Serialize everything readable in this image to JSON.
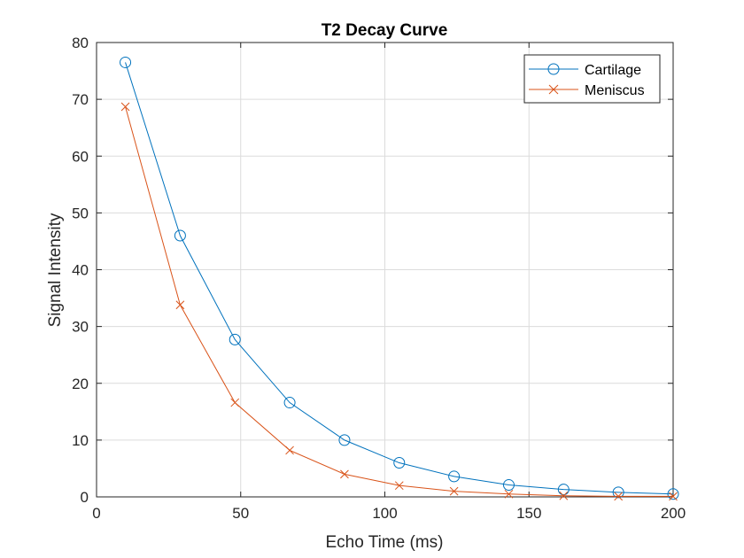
{
  "chart_data": {
    "type": "line",
    "title": "T2 Decay Curve",
    "xlabel": "Echo Time (ms)",
    "ylabel": "Signal Intensity",
    "xlim": [
      0,
      200
    ],
    "ylim": [
      0,
      80
    ],
    "xticks": [
      "0",
      "50",
      "100",
      "150",
      "200"
    ],
    "yticks": [
      "0",
      "10",
      "20",
      "30",
      "40",
      "50",
      "60",
      "70",
      "80"
    ],
    "grid": true,
    "legend_position": "top-right",
    "x": [
      10,
      29,
      48,
      67,
      86,
      105,
      124,
      143,
      162,
      181,
      200
    ],
    "series": [
      {
        "name": "Cartilage",
        "marker": "circle",
        "color": "#0072BD",
        "values": [
          76.5,
          46.0,
          27.7,
          16.6,
          10.0,
          6.0,
          3.6,
          2.1,
          1.3,
          0.8,
          0.5
        ]
      },
      {
        "name": "Meniscus",
        "marker": "x",
        "color": "#D95319",
        "values": [
          68.7,
          33.8,
          16.6,
          8.2,
          4.0,
          2.0,
          1.0,
          0.5,
          0.2,
          0.1,
          0.1
        ]
      }
    ]
  }
}
